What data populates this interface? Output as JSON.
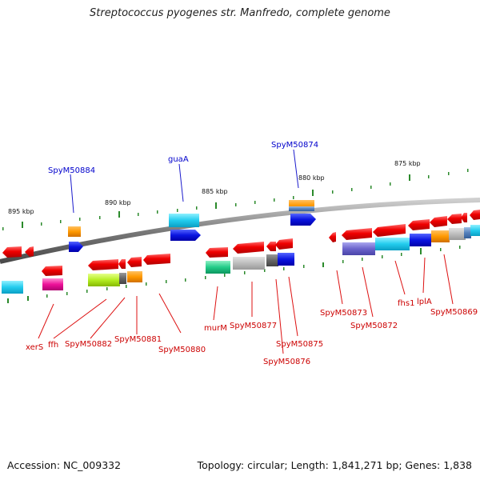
{
  "title": "Streptococcus pyogenes str. Manfredo, complete genome",
  "footer": {
    "accession": "Accession: NC_009332",
    "topology": "Topology: circular; Length: 1,841,271 bp; Genes: 1,838"
  },
  "ruler": [
    "875 kbp",
    "880 kbp",
    "885 kbp",
    "890 kbp",
    "895 kbp"
  ],
  "genes_above": [
    "SpyM50874",
    "guaA",
    "SpyM50884"
  ],
  "genes_below": [
    "xerS",
    "ffh",
    "SpyM50882",
    "SpyM50881",
    "SpyM50880",
    "murM",
    "SpyM50877",
    "SpyM50876",
    "SpyM50875",
    "SpyM50873",
    "SpyM50872",
    "fhs1",
    "lplA",
    "SpyM50869"
  ],
  "colors": {
    "backbone": "#777777",
    "gene_fwd_strand": "#ee0000",
    "label_above": "#0000cc",
    "label_below": "#cc0000",
    "tick": "#2b8a2b"
  }
}
